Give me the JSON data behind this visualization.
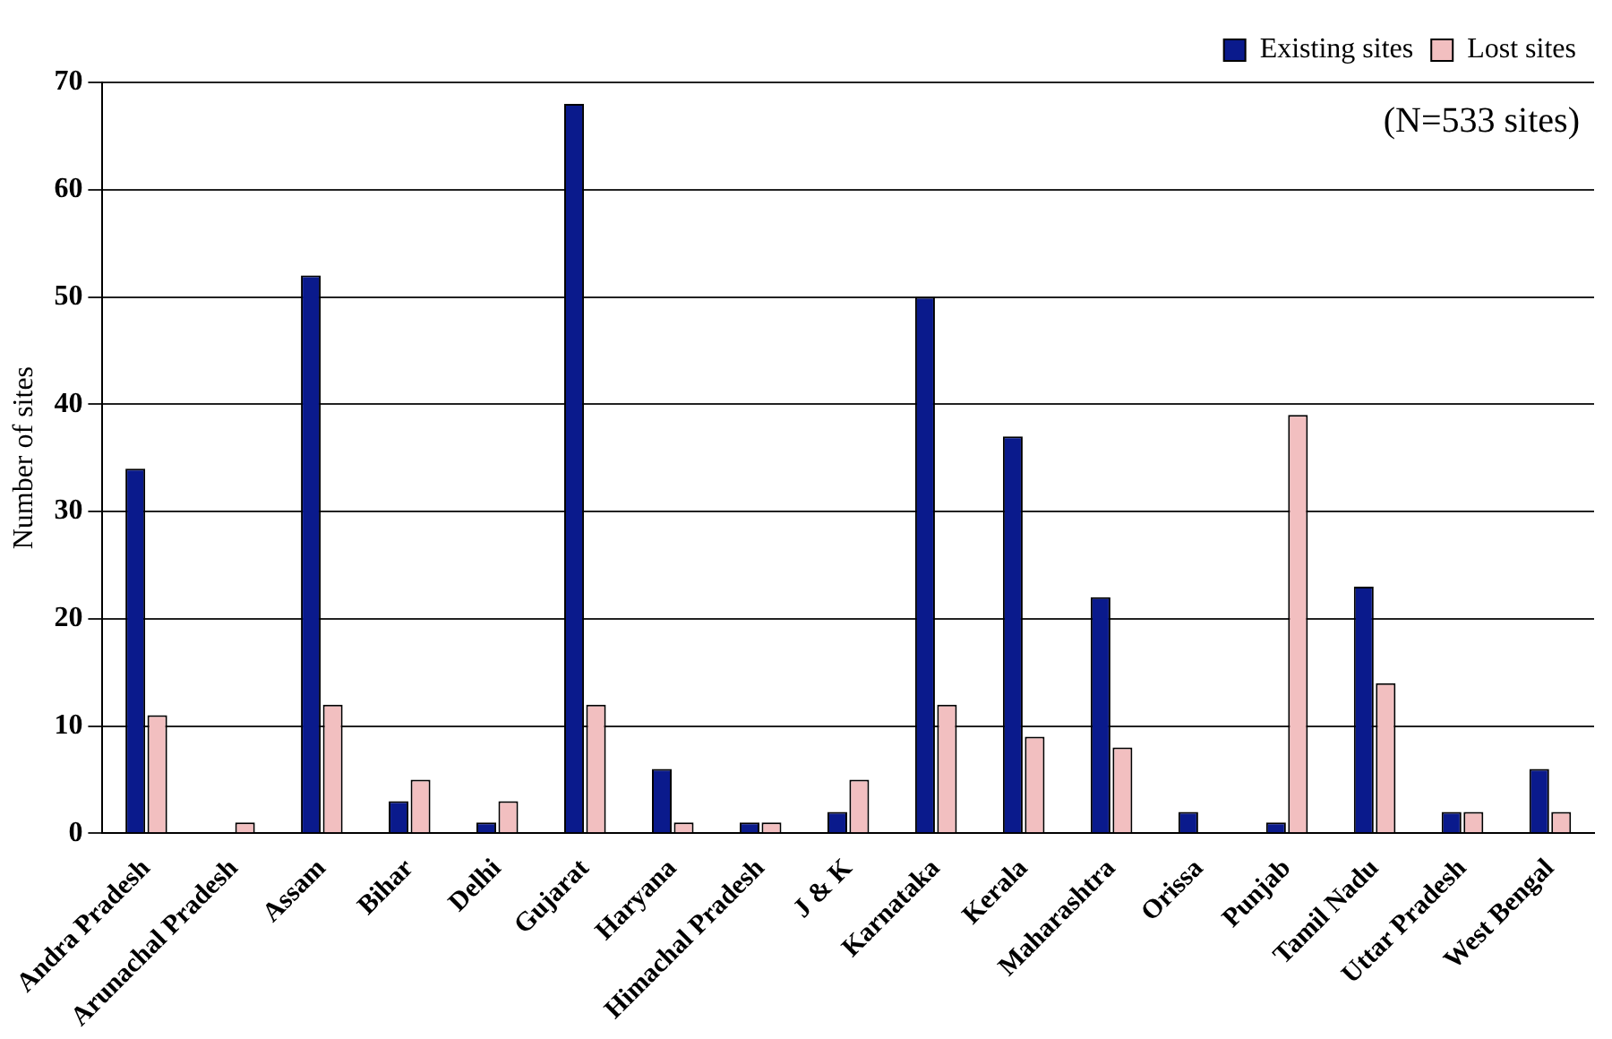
{
  "chart_data": {
    "type": "bar",
    "ylabel": "Number of sites",
    "annotations": [
      "(N=533 sites)"
    ],
    "categories": [
      "Andra Pradesh",
      "Arunachal Pradesh",
      "Assam",
      "Bihar",
      "Delhi",
      "Gujarat",
      "Haryana",
      "Himachal Pradesh",
      "J & K",
      "Karnataka",
      "Kerala",
      "Maharashtra",
      "Orissa",
      "Punjab",
      "Tamil Nadu",
      "Uttar Pradesh",
      "West Bengal"
    ],
    "series": [
      {
        "name": "Existing sites",
        "color": "#0a1a8c",
        "values": [
          34,
          0,
          52,
          3,
          1,
          68,
          6,
          1,
          2,
          50,
          37,
          22,
          2,
          1,
          23,
          2,
          6
        ]
      },
      {
        "name": "Lost sites",
        "color": "#f2bfc0",
        "values": [
          11,
          1,
          12,
          5,
          3,
          12,
          1,
          1,
          5,
          12,
          9,
          8,
          0,
          39,
          14,
          2,
          2
        ]
      }
    ],
    "ylim": [
      0,
      70
    ],
    "yticks": [
      0,
      10,
      20,
      30,
      40,
      50,
      60,
      70
    ],
    "grid": "y",
    "legend": "top right"
  }
}
